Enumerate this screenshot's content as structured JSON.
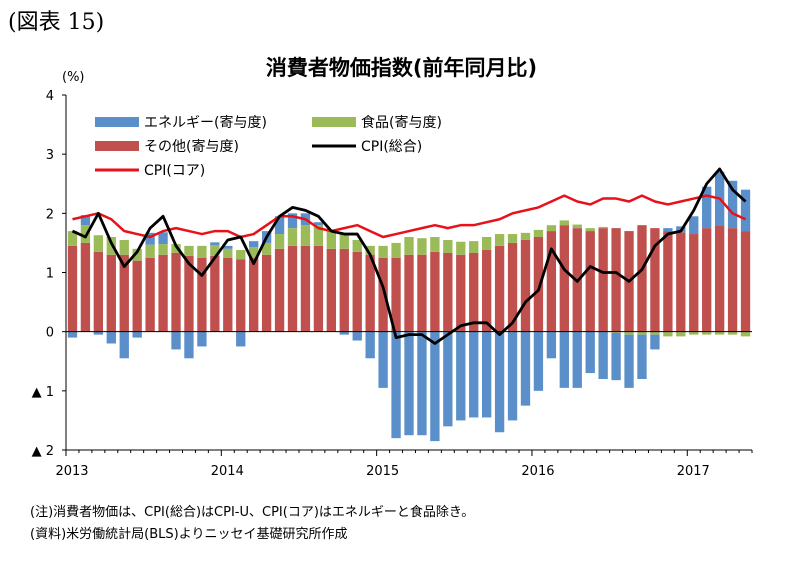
{
  "figure_label": "(図表 15)",
  "chart_data": {
    "type": "bar",
    "title": "消費者物価指数(前年同月比)",
    "y_unit": "(%)",
    "ylim": [
      -2,
      4
    ],
    "y_ticks": [
      4,
      3,
      2,
      1,
      0,
      -1,
      -2
    ],
    "y_tick_labels": [
      "4",
      "3",
      "2",
      "1",
      "0",
      "▲ 1",
      "▲ 2"
    ],
    "x_tick_labels": [
      "2013",
      "2014",
      "2015",
      "2016",
      "2017"
    ],
    "x_tick_start_index": [
      0,
      12,
      24,
      36,
      48
    ],
    "grid": false,
    "legend_position": "top-left",
    "colors": {
      "energy": "#5b8fc9",
      "food": "#9bbb59",
      "other": "#c0504d",
      "cpi": "#000000",
      "core": "#e8111a"
    },
    "series": [
      {
        "name": "エネルギー(寄与度)",
        "kind": "bar",
        "values": [
          -0.1,
          0.17,
          -0.05,
          -0.2,
          -0.45,
          -0.1,
          0.2,
          0.2,
          -0.3,
          -0.45,
          -0.25,
          0.05,
          0.05,
          -0.25,
          0.1,
          0.2,
          0.3,
          0.25,
          0.2,
          0.05,
          0.0,
          -0.05,
          -0.15,
          -0.45,
          -0.95,
          -1.8,
          -1.75,
          -1.75,
          -1.85,
          -1.6,
          -1.5,
          -1.45,
          -1.45,
          -1.7,
          -1.5,
          -1.25,
          -1.0,
          -0.45,
          -0.95,
          -0.95,
          -0.7,
          -0.8,
          -0.8,
          -0.9,
          -0.75,
          -0.25,
          0.05,
          0.1,
          0.3,
          0.7,
          0.9,
          0.8,
          0.7
        ]
      },
      {
        "name": "食品(寄与度)",
        "kind": "bar",
        "values": [
          0.25,
          0.3,
          0.28,
          0.3,
          0.25,
          0.2,
          0.22,
          0.18,
          0.15,
          0.17,
          0.2,
          0.18,
          0.15,
          0.16,
          0.18,
          0.2,
          0.25,
          0.3,
          0.35,
          0.35,
          0.3,
          0.25,
          0.2,
          0.15,
          0.2,
          0.25,
          0.3,
          0.28,
          0.25,
          0.22,
          0.22,
          0.2,
          0.22,
          0.2,
          0.15,
          0.12,
          0.12,
          0.1,
          0.08,
          0.06,
          0.05,
          0.02,
          -0.02,
          -0.05,
          -0.05,
          -0.05,
          -0.08,
          -0.08,
          -0.05,
          -0.05,
          -0.05,
          -0.05,
          -0.08
        ]
      },
      {
        "name": "その他(寄与度)",
        "kind": "bar",
        "values": [
          1.45,
          1.5,
          1.35,
          1.3,
          1.3,
          1.2,
          1.25,
          1.3,
          1.33,
          1.28,
          1.25,
          1.28,
          1.25,
          1.22,
          1.25,
          1.3,
          1.4,
          1.45,
          1.45,
          1.45,
          1.4,
          1.4,
          1.35,
          1.3,
          1.25,
          1.25,
          1.3,
          1.3,
          1.35,
          1.33,
          1.3,
          1.33,
          1.38,
          1.45,
          1.5,
          1.55,
          1.6,
          1.7,
          1.8,
          1.75,
          1.7,
          1.75,
          1.75,
          1.7,
          1.8,
          1.75,
          1.7,
          1.68,
          1.65,
          1.75,
          1.8,
          1.75,
          1.7
        ]
      },
      {
        "name": "CPI(総合)",
        "kind": "line",
        "values": [
          1.7,
          1.6,
          2.0,
          1.5,
          1.1,
          1.35,
          1.75,
          1.95,
          1.45,
          1.15,
          0.95,
          1.25,
          1.55,
          1.6,
          1.15,
          1.6,
          1.95,
          2.1,
          2.05,
          1.95,
          1.7,
          1.65,
          1.65,
          1.3,
          0.75,
          -0.1,
          -0.05,
          -0.05,
          -0.2,
          -0.05,
          0.1,
          0.15,
          0.15,
          -0.05,
          0.15,
          0.5,
          0.7,
          1.4,
          1.05,
          0.85,
          1.1,
          1.0,
          1.0,
          0.85,
          1.05,
          1.45,
          1.65,
          1.7,
          2.05,
          2.5,
          2.75,
          2.4,
          2.2
        ]
      },
      {
        "name": "CPI(コア)",
        "kind": "line",
        "values": [
          1.9,
          1.95,
          2.0,
          1.9,
          1.7,
          1.65,
          1.6,
          1.7,
          1.75,
          1.7,
          1.65,
          1.7,
          1.7,
          1.6,
          1.65,
          1.8,
          1.95,
          1.95,
          1.9,
          1.75,
          1.7,
          1.75,
          1.8,
          1.7,
          1.6,
          1.65,
          1.7,
          1.75,
          1.8,
          1.75,
          1.8,
          1.8,
          1.85,
          1.9,
          2.0,
          2.05,
          2.1,
          2.2,
          2.3,
          2.2,
          2.15,
          2.25,
          2.25,
          2.2,
          2.3,
          2.2,
          2.15,
          2.2,
          2.25,
          2.3,
          2.25,
          2.0,
          1.9
        ]
      }
    ]
  },
  "notes": [
    "(注)消費者物価は、CPI(総合)はCPI-U、CPI(コア)はエネルギーと食品除き。",
    "(資料)米労働統計局(BLS)よりニッセイ基礎研究所作成"
  ]
}
